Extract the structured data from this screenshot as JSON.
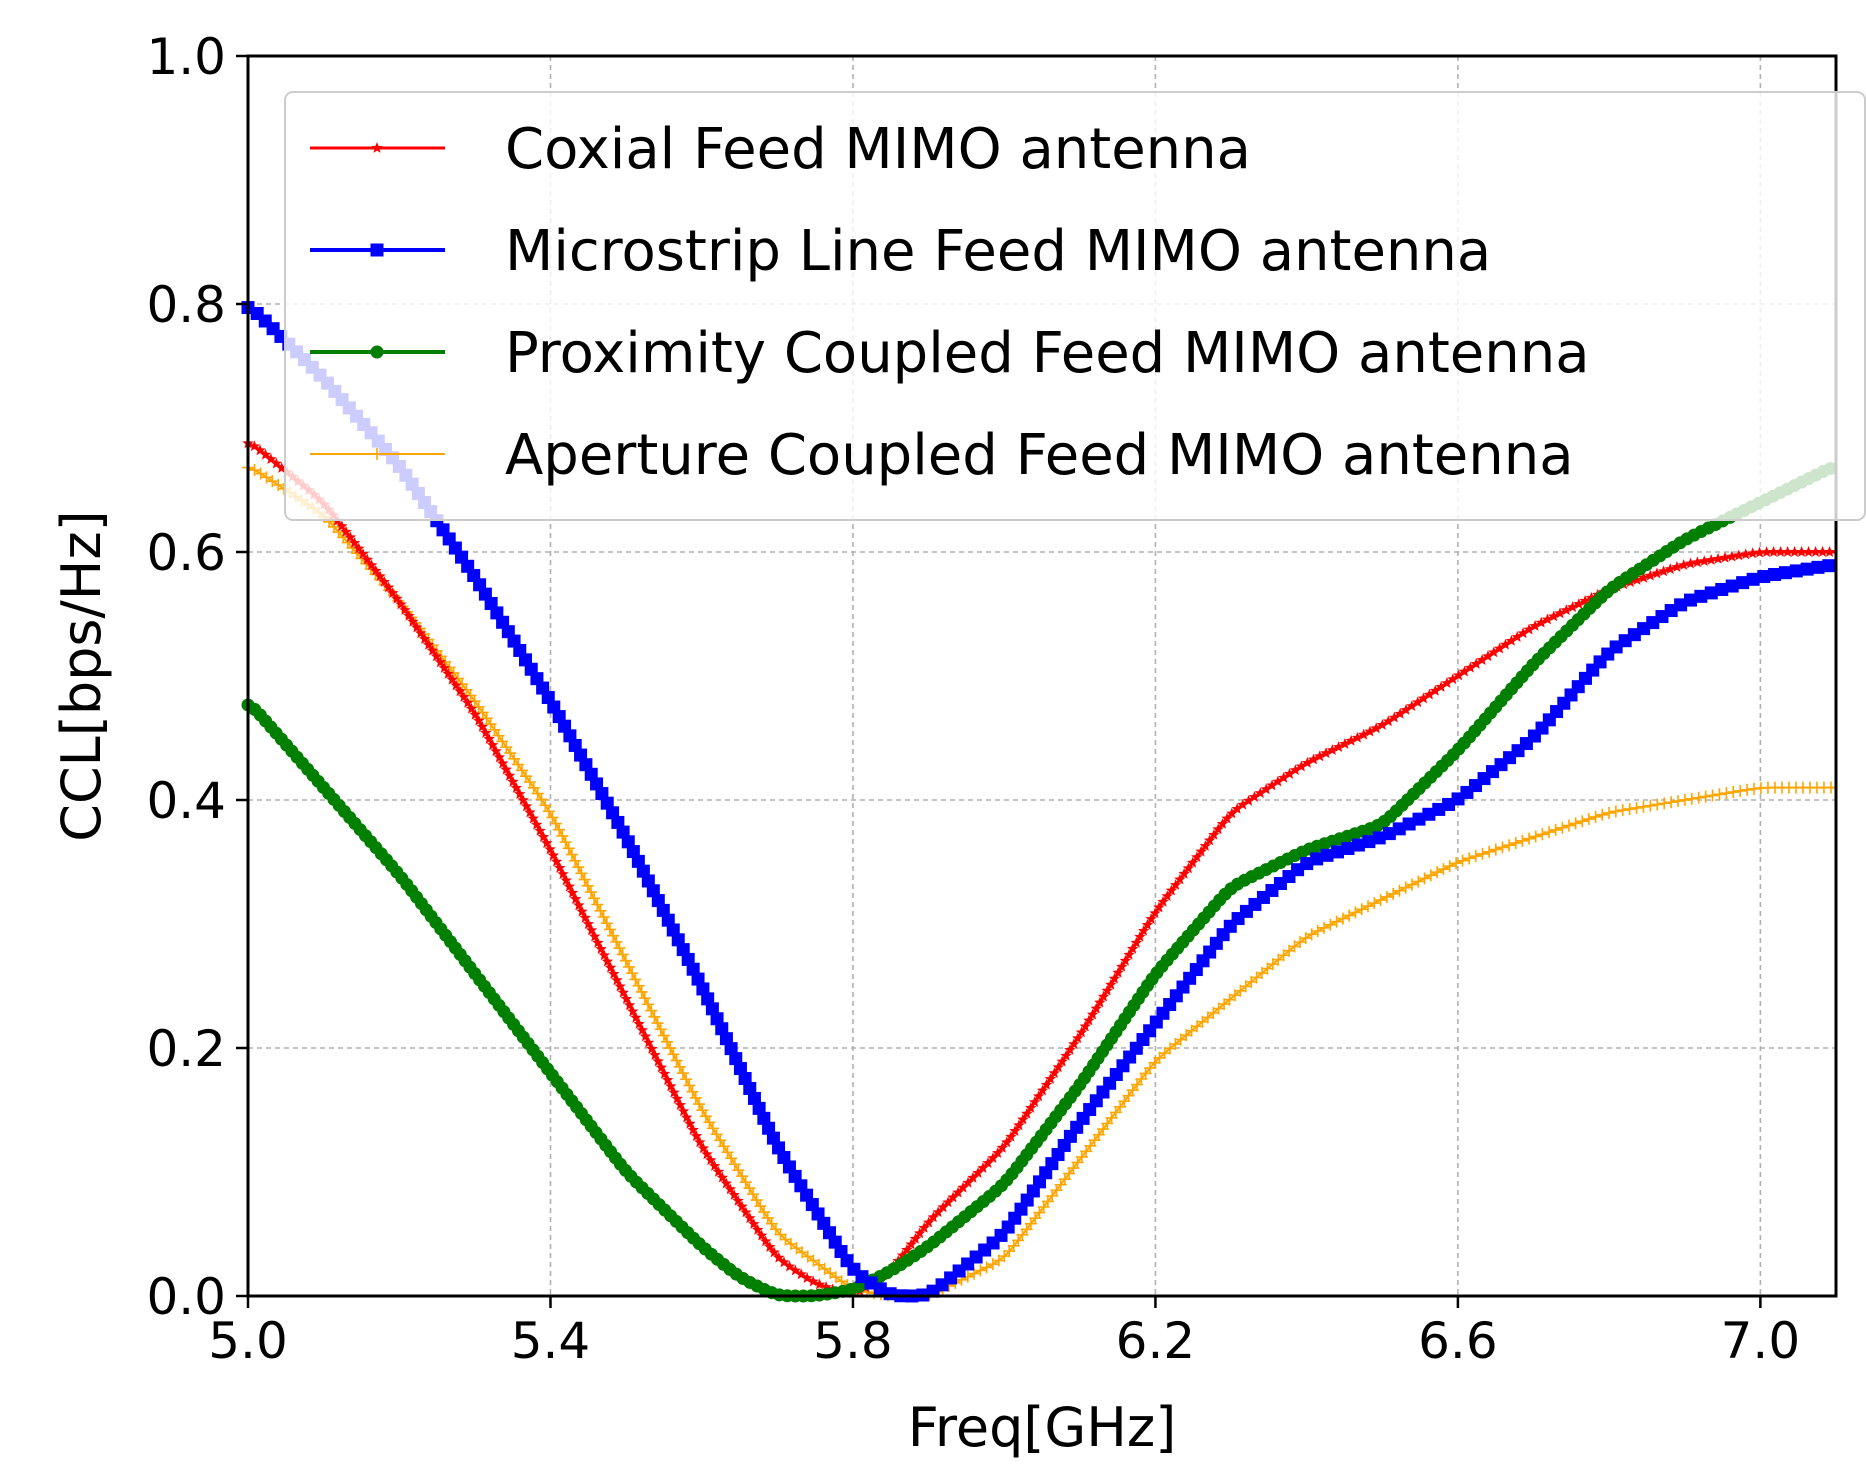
{
  "chart_data": {
    "type": "line",
    "title": "",
    "xlabel": "Freq[GHz]",
    "ylabel": "CCL[bps/Hz]",
    "xlim": [
      5.0,
      7.1
    ],
    "ylim": [
      0.0,
      1.0
    ],
    "grid": true,
    "legend_position": "top-right",
    "x_ticks": [
      {
        "value": 5.0,
        "label": "5.0"
      },
      {
        "value": 5.4,
        "label": "5.4"
      },
      {
        "value": 5.8,
        "label": "5.8"
      },
      {
        "value": 6.2,
        "label": "6.2"
      },
      {
        "value": 6.6,
        "label": "6.6"
      },
      {
        "value": 7.0,
        "label": "7.0"
      }
    ],
    "y_ticks": [
      {
        "value": 0.0,
        "label": "0.0"
      },
      {
        "value": 0.2,
        "label": "0.2"
      },
      {
        "value": 0.4,
        "label": "0.4"
      },
      {
        "value": 0.6,
        "label": "0.6"
      },
      {
        "value": 0.8,
        "label": "0.8"
      },
      {
        "value": 1.0,
        "label": "1.0"
      }
    ],
    "series": [
      {
        "name": "Coxial Feed MIMO antenna",
        "color": "#ff0000",
        "marker": "star",
        "x": [
          5.0,
          5.1,
          5.2,
          5.3,
          5.4,
          5.5,
          5.6,
          5.7,
          5.75,
          5.8,
          5.85,
          5.9,
          6.0,
          6.1,
          6.2,
          6.3,
          6.4,
          6.5,
          6.6,
          6.7,
          6.8,
          6.9,
          7.0,
          7.1
        ],
        "y": [
          0.69,
          0.64,
          0.56,
          0.47,
          0.36,
          0.24,
          0.12,
          0.03,
          0.01,
          0.0,
          0.02,
          0.06,
          0.12,
          0.21,
          0.31,
          0.39,
          0.43,
          0.46,
          0.5,
          0.54,
          0.57,
          0.59,
          0.6,
          0.6
        ]
      },
      {
        "name": "Microstrip Line Feed MIMO antenna",
        "color": "#0000ff",
        "marker": "square",
        "x": [
          5.0,
          5.1,
          5.2,
          5.3,
          5.4,
          5.5,
          5.6,
          5.7,
          5.8,
          5.85,
          5.9,
          6.0,
          6.1,
          6.2,
          6.3,
          6.4,
          6.5,
          6.6,
          6.7,
          6.8,
          6.9,
          7.0,
          7.1
        ],
        "y": [
          0.8,
          0.74,
          0.67,
          0.58,
          0.48,
          0.37,
          0.25,
          0.12,
          0.02,
          0.0,
          0.0,
          0.05,
          0.14,
          0.22,
          0.3,
          0.35,
          0.37,
          0.4,
          0.45,
          0.52,
          0.56,
          0.58,
          0.59
        ]
      },
      {
        "name": "Proximity Coupled Feed MIMO antenna",
        "color": "#007f00",
        "marker": "circle",
        "x": [
          5.0,
          5.1,
          5.2,
          5.3,
          5.4,
          5.5,
          5.6,
          5.65,
          5.7,
          5.75,
          5.8,
          5.85,
          5.9,
          6.0,
          6.1,
          6.2,
          6.3,
          6.4,
          6.5,
          6.6,
          6.7,
          6.8,
          6.9,
          7.0,
          7.1
        ],
        "y": [
          0.48,
          0.41,
          0.34,
          0.26,
          0.18,
          0.1,
          0.04,
          0.015,
          0.0,
          0.0,
          0.005,
          0.02,
          0.04,
          0.09,
          0.17,
          0.26,
          0.33,
          0.36,
          0.38,
          0.44,
          0.51,
          0.57,
          0.61,
          0.64,
          0.67
        ]
      },
      {
        "name": "Aperture Coupled Feed MIMO antenna",
        "color": "#ffa500",
        "marker": "plus",
        "x": [
          5.0,
          5.1,
          5.2,
          5.3,
          5.4,
          5.5,
          5.6,
          5.7,
          5.8,
          5.85,
          5.9,
          6.0,
          6.1,
          6.2,
          6.3,
          6.4,
          6.5,
          6.6,
          6.7,
          6.8,
          6.9,
          7.0,
          7.1
        ],
        "y": [
          0.67,
          0.63,
          0.56,
          0.48,
          0.39,
          0.27,
          0.15,
          0.05,
          0.005,
          0.0,
          0.0,
          0.03,
          0.11,
          0.19,
          0.24,
          0.29,
          0.32,
          0.35,
          0.37,
          0.39,
          0.4,
          0.41,
          0.41
        ]
      }
    ]
  }
}
